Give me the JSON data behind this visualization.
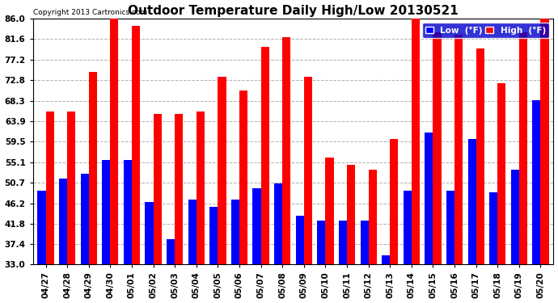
{
  "title": "Outdoor Temperature Daily High/Low 20130521",
  "copyright": "Copyright 2013 Cartronics.com",
  "legend_low": "Low  (°F)",
  "legend_high": "High  (°F)",
  "categories": [
    "04/27",
    "04/28",
    "04/29",
    "04/30",
    "05/01",
    "05/02",
    "05/03",
    "05/04",
    "05/05",
    "05/06",
    "05/07",
    "05/08",
    "05/09",
    "05/10",
    "05/11",
    "05/12",
    "05/13",
    "05/14",
    "05/15",
    "05/16",
    "05/17",
    "05/18",
    "05/19",
    "05/20"
  ],
  "high_values": [
    66.0,
    66.0,
    74.5,
    86.0,
    84.5,
    65.5,
    65.5,
    66.0,
    73.5,
    70.5,
    80.0,
    82.0,
    73.5,
    56.0,
    54.5,
    53.5,
    60.0,
    86.0,
    83.0,
    82.5,
    79.5,
    72.0,
    83.0,
    86.0
  ],
  "low_values": [
    49.0,
    51.5,
    52.5,
    55.5,
    55.5,
    46.5,
    38.5,
    47.0,
    45.5,
    47.0,
    49.5,
    50.5,
    43.5,
    42.5,
    42.5,
    42.5,
    35.0,
    49.0,
    61.5,
    49.0,
    60.0,
    48.5,
    53.5,
    68.5
  ],
  "ylim": [
    33.0,
    86.0
  ],
  "yticks": [
    33.0,
    37.4,
    41.8,
    46.2,
    50.7,
    55.1,
    59.5,
    63.9,
    68.3,
    72.8,
    77.2,
    81.6,
    86.0
  ],
  "bar_color_high": "#ff0000",
  "bar_color_low": "#0000ff",
  "background_color": "#ffffff",
  "grid_color": "#b0b0b0",
  "title_fontsize": 11,
  "tick_fontsize": 7.5,
  "bar_width": 0.38,
  "bar_bottom": 33.0
}
